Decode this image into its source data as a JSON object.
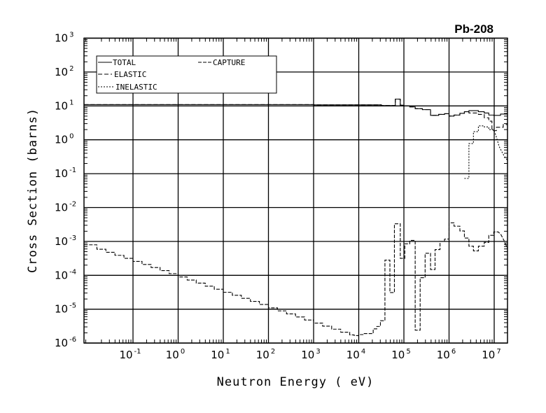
{
  "chart_data": {
    "type": "line",
    "title": "Pb-208",
    "xlabel": "Neutron Energy ( eV)",
    "ylabel": "Cross Section (barns)",
    "xscale": "log",
    "yscale": "log",
    "xlim_log10": [
      -2.08,
      7.3
    ],
    "ylim_log10": [
      -6,
      3
    ],
    "grid": true,
    "legend_placement": "top-left",
    "x_ticks": [
      {
        "base": "10",
        "exp": "-1",
        "log": -1
      },
      {
        "base": "10",
        "exp": "0",
        "log": 0
      },
      {
        "base": "10",
        "exp": "1",
        "log": 1
      },
      {
        "base": "10",
        "exp": "2",
        "log": 2
      },
      {
        "base": "10",
        "exp": "3",
        "log": 3
      },
      {
        "base": "10",
        "exp": "4",
        "log": 4
      },
      {
        "base": "10",
        "exp": "5",
        "log": 5
      },
      {
        "base": "10",
        "exp": "6",
        "log": 6
      },
      {
        "base": "10",
        "exp": "7",
        "log": 7
      }
    ],
    "y_ticks": [
      {
        "base": "10",
        "exp": "3",
        "log": 3
      },
      {
        "base": "10",
        "exp": "2",
        "log": 2
      },
      {
        "base": "10",
        "exp": "1",
        "log": 1
      },
      {
        "base": "10",
        "exp": "0",
        "log": 0
      },
      {
        "base": "10",
        "exp": "-1",
        "log": -1
      },
      {
        "base": "10",
        "exp": "-2",
        "log": -2
      },
      {
        "base": "10",
        "exp": "-3",
        "log": -3
      },
      {
        "base": "10",
        "exp": "-4",
        "log": -4
      },
      {
        "base": "10",
        "exp": "-5",
        "log": -5
      },
      {
        "base": "10",
        "exp": "-6",
        "log": -6
      }
    ],
    "series_units": "steps are [log10 energy (eV), log10 cross section (barns)]",
    "series": [
      {
        "name": "TOTAL",
        "style": "solid",
        "steps": [
          [
            -2.08,
            1.04
          ],
          [
            3.0,
            1.03
          ],
          [
            4.5,
            1.01
          ],
          [
            4.81,
            1.2
          ],
          [
            4.92,
            1.02
          ],
          [
            5.0,
            1.0
          ],
          [
            5.13,
            0.97
          ],
          [
            5.25,
            0.92
          ],
          [
            5.41,
            0.89
          ],
          [
            5.59,
            0.72
          ],
          [
            5.77,
            0.75
          ],
          [
            5.9,
            0.77
          ],
          [
            6.0,
            0.7
          ],
          [
            6.11,
            0.73
          ],
          [
            6.24,
            0.78
          ],
          [
            6.34,
            0.83
          ],
          [
            6.44,
            0.86
          ],
          [
            6.65,
            0.83
          ],
          [
            6.78,
            0.79
          ],
          [
            6.88,
            0.73
          ],
          [
            6.99,
            0.72
          ],
          [
            7.14,
            0.76
          ]
        ],
        "end": 7.29,
        "tail": []
      },
      {
        "name": "ELASTIC",
        "style": "dashed",
        "steps": [
          [
            -2.08,
            1.04
          ],
          [
            3.0,
            1.03
          ],
          [
            4.5,
            1.01
          ],
          [
            4.81,
            1.2
          ],
          [
            4.92,
            1.02
          ],
          [
            5.0,
            1.0
          ],
          [
            5.13,
            0.97
          ],
          [
            5.25,
            0.92
          ],
          [
            5.41,
            0.89
          ],
          [
            5.59,
            0.72
          ],
          [
            5.77,
            0.75
          ],
          [
            5.9,
            0.77
          ],
          [
            6.0,
            0.7
          ],
          [
            6.11,
            0.73
          ],
          [
            6.24,
            0.78
          ],
          [
            6.34,
            0.83
          ],
          [
            6.44,
            0.79
          ],
          [
            6.65,
            0.75
          ],
          [
            6.78,
            0.65
          ],
          [
            6.88,
            0.55
          ],
          [
            6.95,
            0.27
          ],
          [
            7.05,
            0.37
          ],
          [
            7.2,
            0.45
          ]
        ],
        "end": 7.29,
        "tail": []
      },
      {
        "name": "INELASTIC",
        "style": "dotted",
        "steps": [
          [
            6.34,
            -1.14
          ],
          [
            6.44,
            -0.11
          ],
          [
            6.54,
            0.24
          ],
          [
            6.65,
            0.41
          ],
          [
            6.78,
            0.38
          ],
          [
            6.88,
            0.3
          ]
        ],
        "end": 6.99,
        "tail": [
          [
            6.99,
            0.3
          ],
          [
            7.04,
            0.12
          ],
          [
            7.11,
            -0.2
          ],
          [
            7.22,
            -0.48
          ],
          [
            7.29,
            -0.6
          ]
        ]
      },
      {
        "name": "CAPTURE",
        "style": "long-dash",
        "steps": [
          [
            -2.08,
            -3.1
          ],
          [
            -1.8,
            -3.23
          ],
          [
            -1.6,
            -3.32
          ],
          [
            -1.4,
            -3.41
          ],
          [
            -1.2,
            -3.5
          ],
          [
            -1.0,
            -3.59
          ],
          [
            -0.8,
            -3.68
          ],
          [
            -0.6,
            -3.77
          ],
          [
            -0.4,
            -3.86
          ],
          [
            -0.2,
            -3.95
          ],
          [
            0.0,
            -4.05
          ],
          [
            0.2,
            -4.14
          ],
          [
            0.4,
            -4.23
          ],
          [
            0.6,
            -4.32
          ],
          [
            0.8,
            -4.41
          ],
          [
            1.0,
            -4.5
          ],
          [
            1.2,
            -4.59
          ],
          [
            1.4,
            -4.68
          ],
          [
            1.6,
            -4.77
          ],
          [
            1.8,
            -4.86
          ],
          [
            2.0,
            -4.96
          ],
          [
            2.2,
            -5.05
          ],
          [
            2.4,
            -5.14
          ],
          [
            2.6,
            -5.23
          ],
          [
            2.8,
            -5.32
          ],
          [
            3.0,
            -5.41
          ],
          [
            3.2,
            -5.5
          ],
          [
            3.4,
            -5.59
          ],
          [
            3.6,
            -5.68
          ],
          [
            3.8,
            -5.76
          ],
          [
            3.9,
            -5.78
          ],
          [
            4.0,
            -5.75
          ],
          [
            4.12,
            -5.72
          ],
          [
            4.32,
            -5.58
          ],
          [
            4.4,
            -5.51
          ],
          [
            4.48,
            -5.34
          ],
          [
            4.58,
            -3.55
          ],
          [
            4.69,
            -4.51
          ],
          [
            4.79,
            -2.48
          ],
          [
            4.92,
            -3.5
          ],
          [
            5.02,
            -3.07
          ],
          [
            5.13,
            -2.97
          ],
          [
            5.25,
            -5.62
          ],
          [
            5.36,
            -4.07
          ],
          [
            5.47,
            -3.35
          ],
          [
            5.59,
            -3.83
          ],
          [
            5.69,
            -3.24
          ],
          [
            5.8,
            -3.0
          ],
          [
            5.9,
            -2.93
          ],
          [
            6.0,
            -2.45
          ],
          [
            6.11,
            -2.55
          ],
          [
            6.24,
            -2.69
          ],
          [
            6.34,
            -2.9
          ],
          [
            6.44,
            -3.14
          ],
          [
            6.54,
            -3.28
          ],
          [
            6.65,
            -3.14
          ],
          [
            6.78,
            -3.03
          ],
          [
            6.88,
            -2.82
          ],
          [
            6.99,
            -2.72
          ]
        ],
        "end": 7.09,
        "tail": [
          [
            7.09,
            -2.72
          ],
          [
            7.15,
            -2.8
          ],
          [
            7.22,
            -2.98
          ],
          [
            7.29,
            -3.2
          ]
        ]
      }
    ]
  }
}
